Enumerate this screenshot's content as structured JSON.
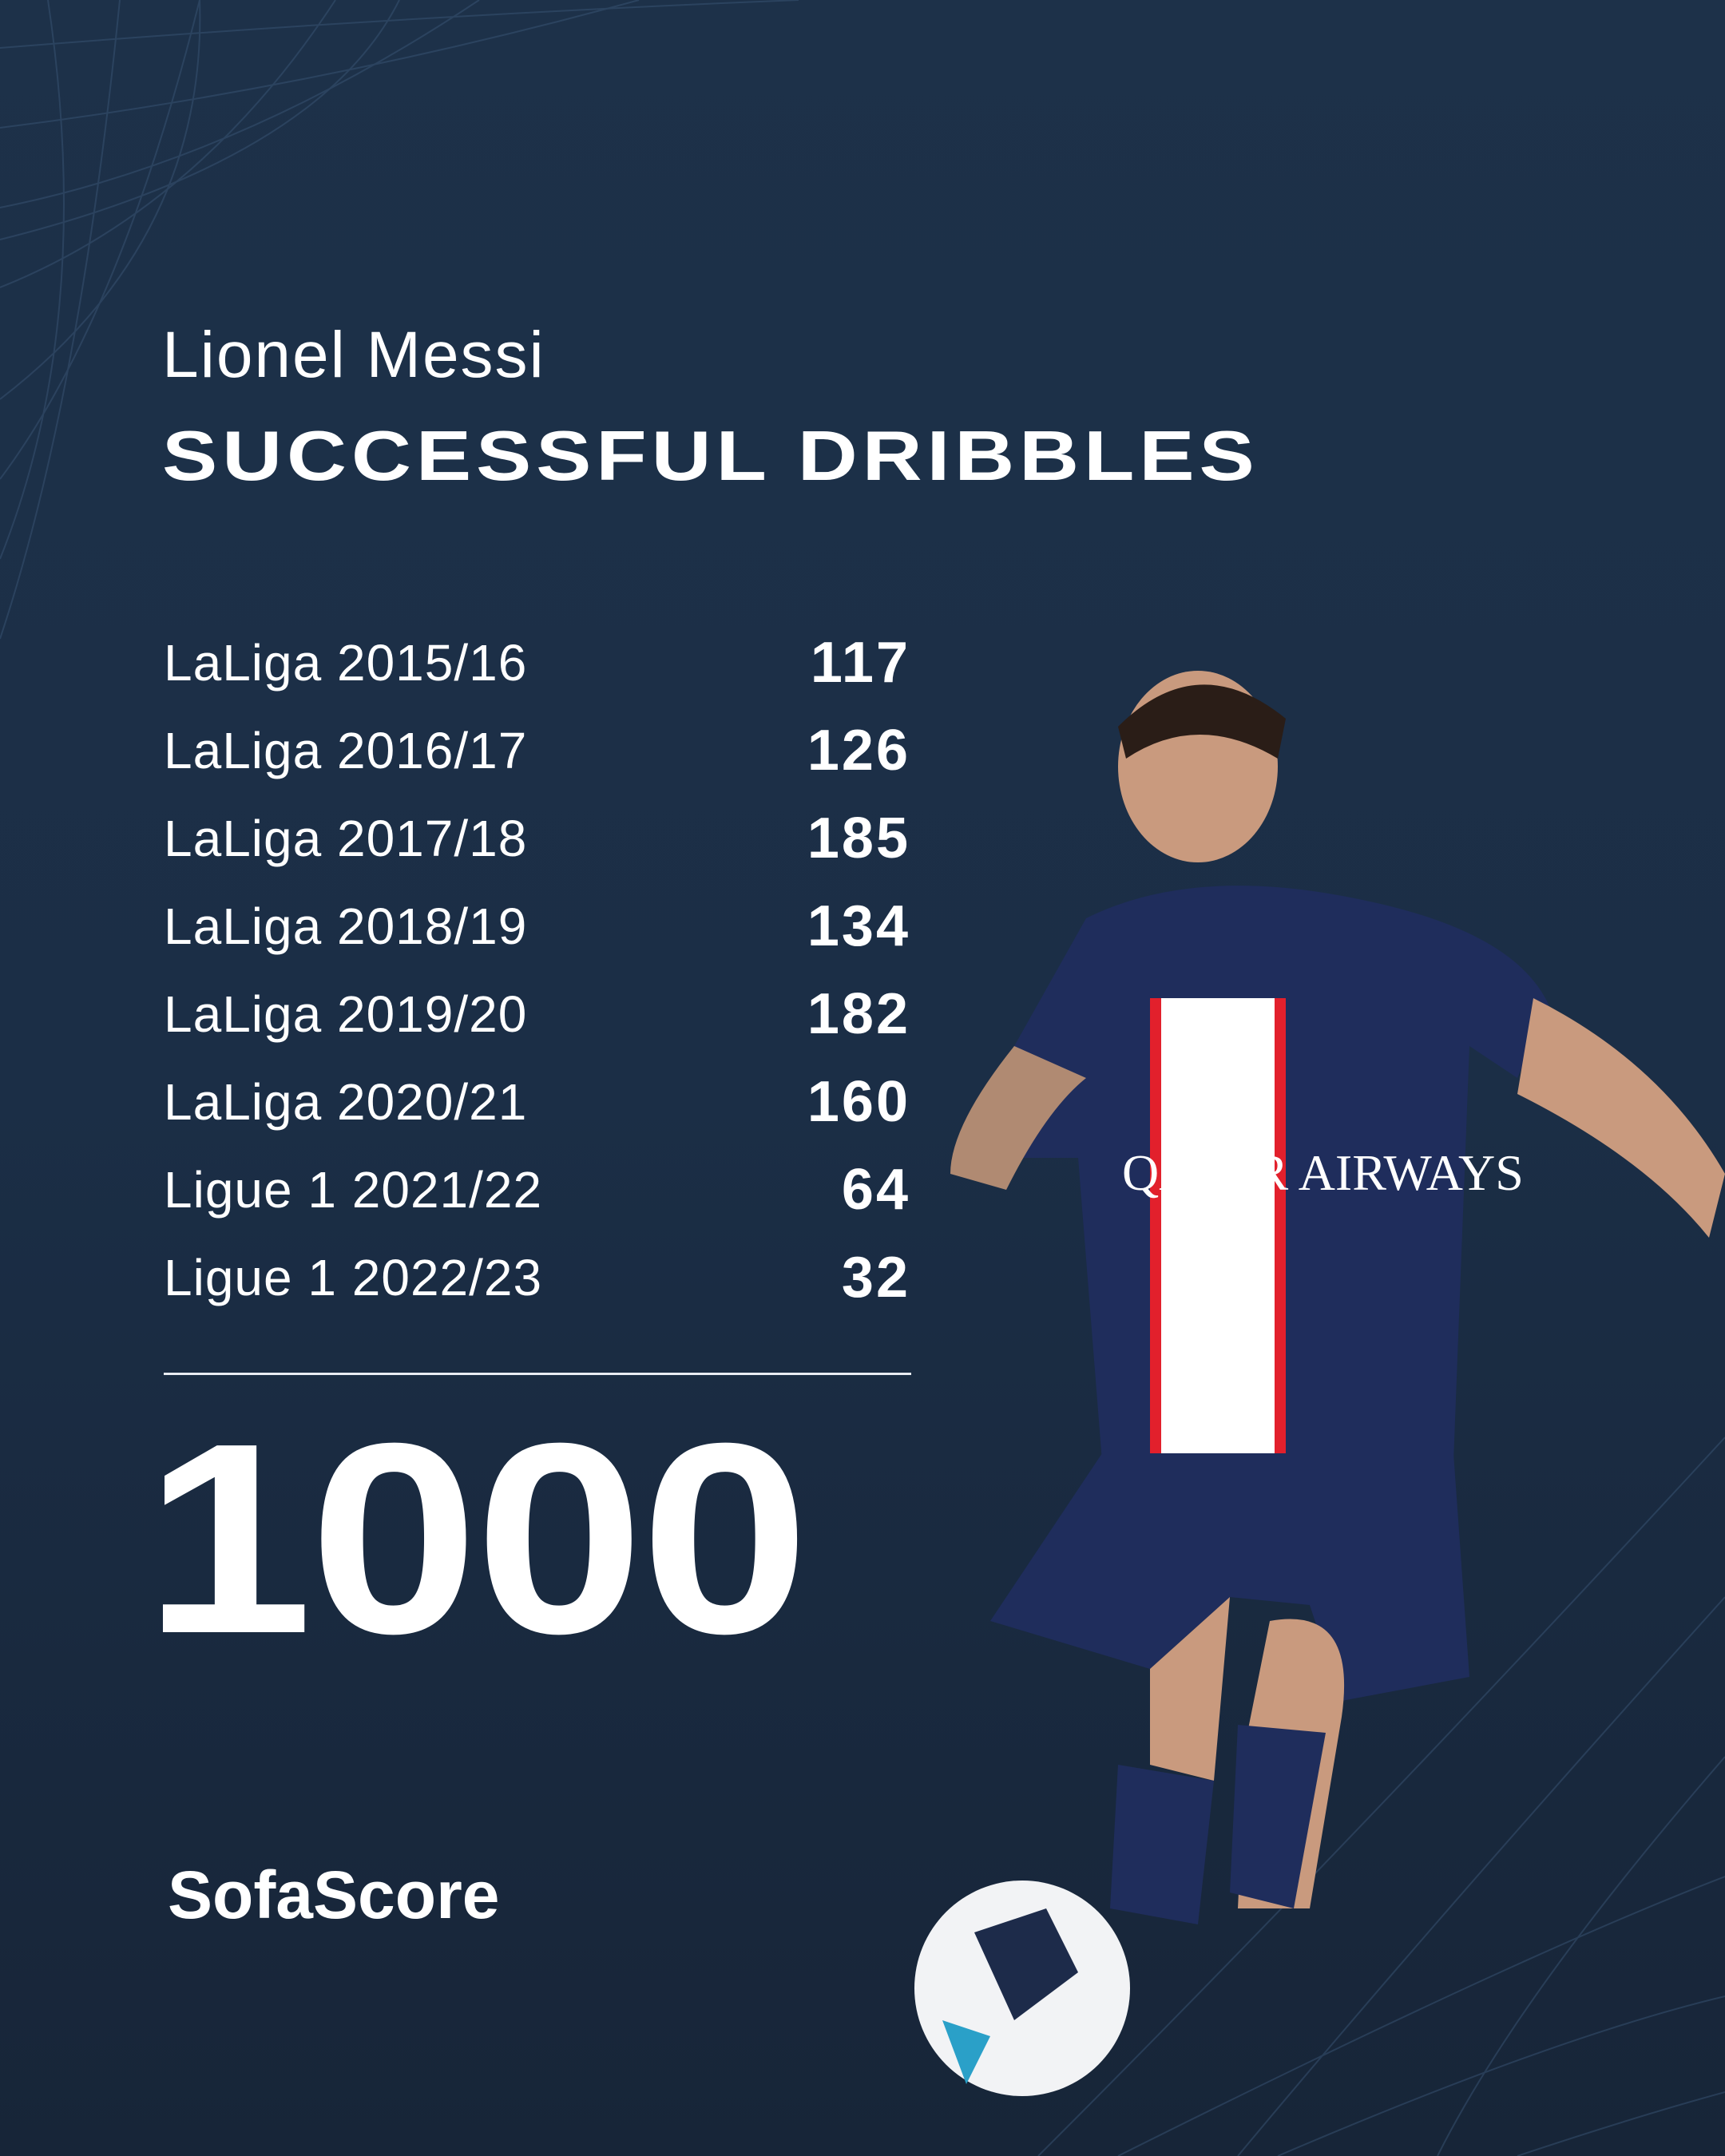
{
  "player_name": "Lionel Messi",
  "stat_title": "SUCCESSFUL DRIBBLES",
  "rows": [
    {
      "label": "LaLiga 2015/16",
      "value": "117"
    },
    {
      "label": "LaLiga 2016/17",
      "value": "126"
    },
    {
      "label": "LaLiga 2017/18",
      "value": "185"
    },
    {
      "label": "LaLiga 2018/19",
      "value": "134"
    },
    {
      "label": "LaLiga 2019/20",
      "value": "182"
    },
    {
      "label": "LaLiga 2020/21",
      "value": "160"
    },
    {
      "label": "Ligue 1 2021/22",
      "value": "64"
    },
    {
      "label": "Ligue 1 2022/23",
      "value": "32"
    }
  ],
  "total": "1000",
  "brand": "SofaScore",
  "photo": {
    "kit_text": "QATAR AIRWAYS",
    "colors": {
      "kit": "#1f2d5c",
      "stripe": "#e2202c",
      "white": "#ffffff"
    }
  },
  "colors": {
    "background": "#1c3048",
    "text": "#ffffff"
  }
}
